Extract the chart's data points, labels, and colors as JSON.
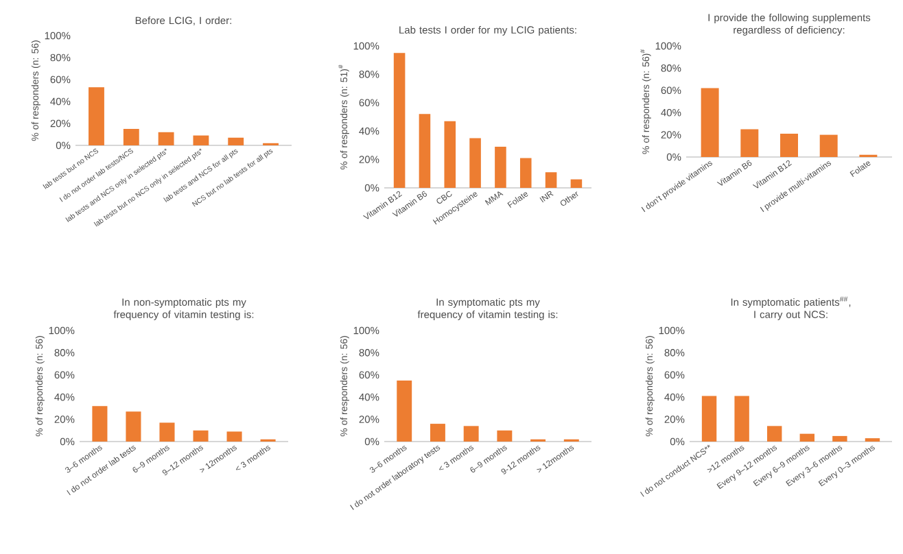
{
  "chart_data": [
    {
      "type": "bar",
      "title": "Before LCIG, I order:",
      "ylabel": "% of responders (n: 56)",
      "categories": [
        "lab tests but no NCS",
        "I do not order lab tests/NCS",
        "lab tests and NCS only in selected pts*",
        "lab tests but no NCS only in selected pts*",
        "lab tests and NCS for all pts",
        "NCS but no lab tests for all pts"
      ],
      "values": [
        53,
        15,
        12,
        9,
        7,
        2
      ],
      "color": "#ed7d31",
      "ylim": [
        0,
        100
      ],
      "yticks": [
        {
          "value": 0,
          "label": "0%"
        },
        {
          "value": 20,
          "label": "20%"
        },
        {
          "value": 40,
          "label": "40%"
        },
        {
          "value": 60,
          "label": "60%"
        },
        {
          "value": 80,
          "label": "80%"
        },
        {
          "value": 100,
          "label": "100%"
        }
      ]
    },
    {
      "type": "bar",
      "title": "Lab tests I order for my LCIG patients:",
      "ylabel": "% of responders (n: 51)$^{#}$",
      "categories": [
        "Vitamin B12",
        "Vitamin B6",
        "CBC",
        "Homocysteine",
        "MMA",
        "Folate",
        "INR",
        "Other"
      ],
      "values": [
        95,
        52,
        47,
        35,
        29,
        21,
        11,
        6
      ],
      "color": "#ed7d31",
      "ylim": [
        0,
        100
      ],
      "yticks": [
        {
          "value": 0,
          "label": "0%"
        },
        {
          "value": 20,
          "label": "20%"
        },
        {
          "value": 40,
          "label": "40%"
        },
        {
          "value": 60,
          "label": "60%"
        },
        {
          "value": 80,
          "label": "80%"
        },
        {
          "value": 100,
          "label": "100%"
        }
      ]
    },
    {
      "type": "bar",
      "title": "I provide the following supplements regardless of deficiency:",
      "ylabel": "% of responders (n: 56)$^{#}$",
      "categories": [
        "I don’t provide vitamins",
        "Vitamin B6",
        "Vitamin B12",
        "I provide multi-vitamins",
        "Folate"
      ],
      "values": [
        62,
        25,
        21,
        20,
        2
      ],
      "color": "#ed7d31",
      "ylim": [
        0,
        100
      ],
      "yticks": [
        {
          "value": 0,
          "label": "0%"
        },
        {
          "value": 20,
          "label": "20%"
        },
        {
          "value": 40,
          "label": "40%"
        },
        {
          "value": 60,
          "label": "60%"
        },
        {
          "value": 80,
          "label": "80%"
        },
        {
          "value": 100,
          "label": "100%"
        }
      ]
    },
    {
      "type": "bar",
      "title": "In non-symptomatic pts my frequency of vitamin testing is:",
      "ylabel": "% of responders (n: 56)",
      "categories": [
        "3–6 months",
        "I do not order lab tests",
        "6–9 months",
        "9–12 months",
        "> 12months",
        "< 3 months"
      ],
      "values": [
        32,
        27,
        17,
        10,
        9,
        2
      ],
      "color": "#ed7d31",
      "ylim": [
        0,
        100
      ],
      "yticks": [
        {
          "value": 0,
          "label": "0%"
        },
        {
          "value": 20,
          "label": "20%"
        },
        {
          "value": 40,
          "label": "40%"
        },
        {
          "value": 60,
          "label": "60%"
        },
        {
          "value": 80,
          "label": "80%"
        },
        {
          "value": 100,
          "label": "100%"
        }
      ]
    },
    {
      "type": "bar",
      "title": "In symptomatic pts my frequency of vitamin testing is:",
      "ylabel": "% of responders (n: 56)",
      "categories": [
        "3–6 months",
        "I do not order laboratory tests",
        "< 3 months",
        "6–9 months",
        "9-12 months",
        "> 12months"
      ],
      "values": [
        55,
        16,
        14,
        10,
        2,
        2
      ],
      "color": "#ed7d31",
      "ylim": [
        0,
        100
      ],
      "yticks": [
        {
          "value": 0,
          "label": "0%"
        },
        {
          "value": 20,
          "label": "20%"
        },
        {
          "value": 40,
          "label": "40%"
        },
        {
          "value": 60,
          "label": "60%"
        },
        {
          "value": 80,
          "label": "80%"
        },
        {
          "value": 100,
          "label": "100%"
        }
      ]
    },
    {
      "type": "bar",
      "title": "In symptomatic patients$^{##}$, I carry out NCS:",
      "ylabel": "% of responders (n: 56)",
      "categories": [
        "I do not conduct NCS**",
        ">12 months",
        "Every 9–12 months",
        "Every 6–9 months",
        "Every 3–6 months",
        "Every 0–3 months"
      ],
      "values": [
        41,
        41,
        14,
        7,
        5,
        3
      ],
      "color": "#ed7d31",
      "ylim": [
        0,
        100
      ],
      "yticks": [
        {
          "value": 0,
          "label": "0%"
        },
        {
          "value": 20,
          "label": "20%"
        },
        {
          "value": 40,
          "label": "40%"
        },
        {
          "value": 60,
          "label": "60%"
        },
        {
          "value": 80,
          "label": "80%"
        },
        {
          "value": 100,
          "label": "100%"
        }
      ]
    }
  ]
}
